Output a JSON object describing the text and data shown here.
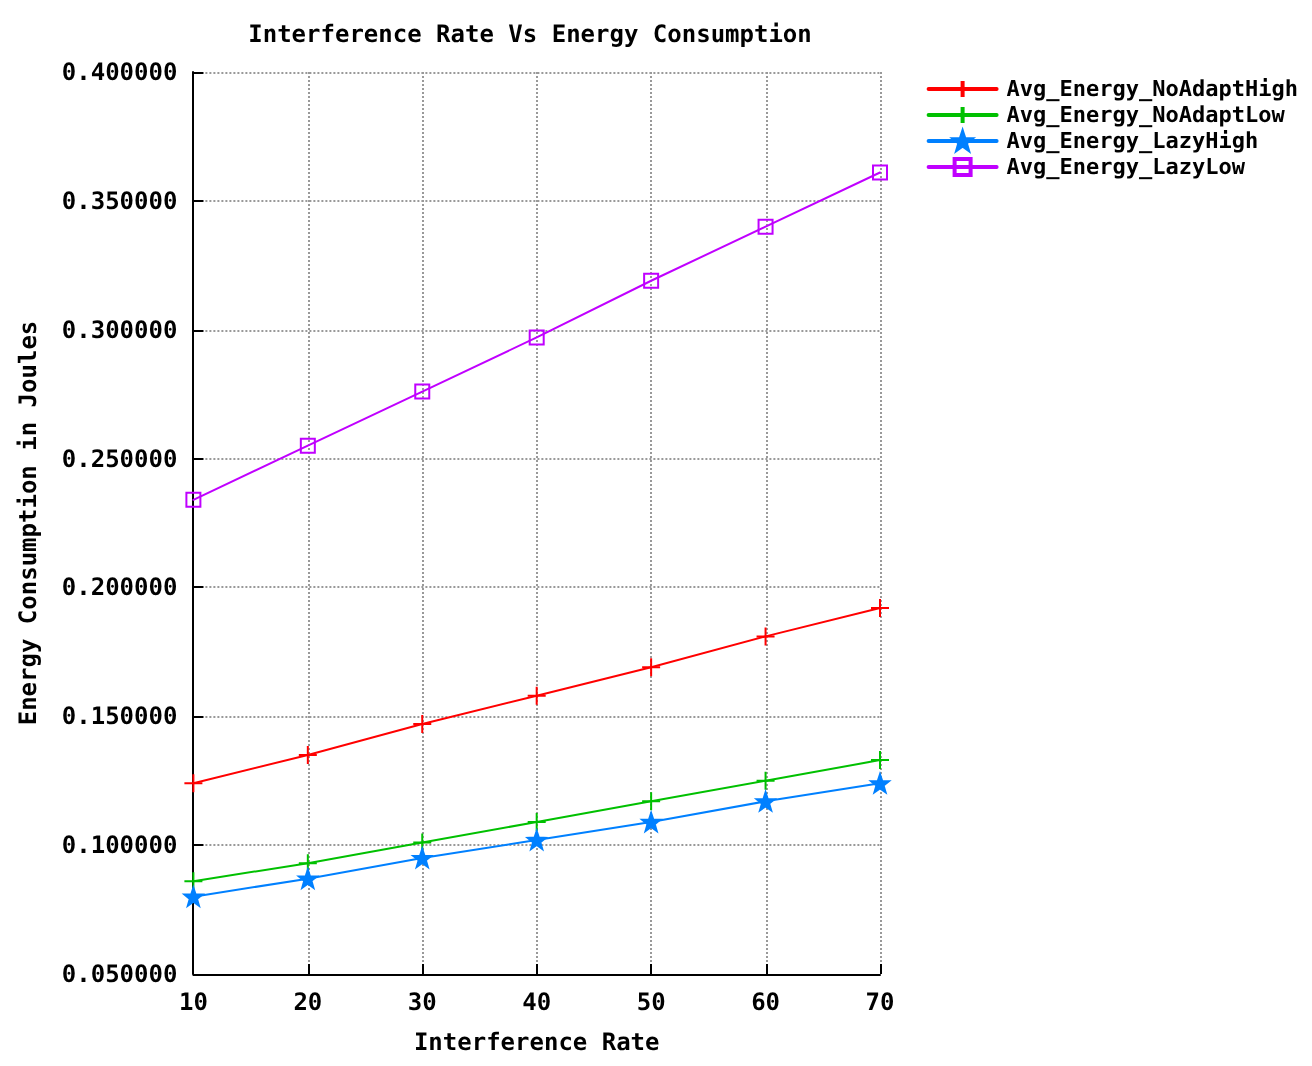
{
  "chart_data": {
    "type": "line",
    "title": "Interference Rate Vs Energy Consumption",
    "xlabel": "Interference Rate",
    "ylabel": "Energy Consumption in Joules",
    "x": [
      10,
      20,
      30,
      40,
      50,
      60,
      70
    ],
    "series": [
      {
        "name": "Avg_Energy_NoAdaptHigh",
        "color": "#ff0000",
        "marker": "cross",
        "values": [
          0.124,
          0.135,
          0.147,
          0.158,
          0.169,
          0.181,
          0.192
        ]
      },
      {
        "name": "Avg_Energy_NoAdaptLow",
        "color": "#00c000",
        "marker": "cross",
        "values": [
          0.086,
          0.093,
          0.101,
          0.109,
          0.117,
          0.125,
          0.133
        ]
      },
      {
        "name": "Avg_Energy_LazyHigh",
        "color": "#0080ff",
        "marker": "star",
        "values": [
          0.08,
          0.087,
          0.095,
          0.102,
          0.109,
          0.117,
          0.124
        ]
      },
      {
        "name": "Avg_Energy_LazyLow",
        "color": "#c000ff",
        "marker": "square",
        "values": [
          0.234,
          0.255,
          0.276,
          0.297,
          0.319,
          0.34,
          0.361
        ]
      }
    ],
    "xlim": [
      10,
      70
    ],
    "xticks": [
      10,
      20,
      30,
      40,
      50,
      60,
      70
    ],
    "ylim": [
      0.05,
      0.4
    ],
    "yticks": [
      {
        "value": 0.05,
        "label": "0.050000"
      },
      {
        "value": 0.1,
        "label": "0.100000"
      },
      {
        "value": 0.15,
        "label": "0.150000"
      },
      {
        "value": 0.2,
        "label": "0.200000"
      },
      {
        "value": 0.25,
        "label": "0.250000"
      },
      {
        "value": 0.3,
        "label": "0.300000"
      },
      {
        "value": 0.35,
        "label": "0.350000"
      },
      {
        "value": 0.4,
        "label": "0.400000"
      }
    ],
    "grid": true,
    "legend": "top right",
    "line_style": "solid"
  }
}
